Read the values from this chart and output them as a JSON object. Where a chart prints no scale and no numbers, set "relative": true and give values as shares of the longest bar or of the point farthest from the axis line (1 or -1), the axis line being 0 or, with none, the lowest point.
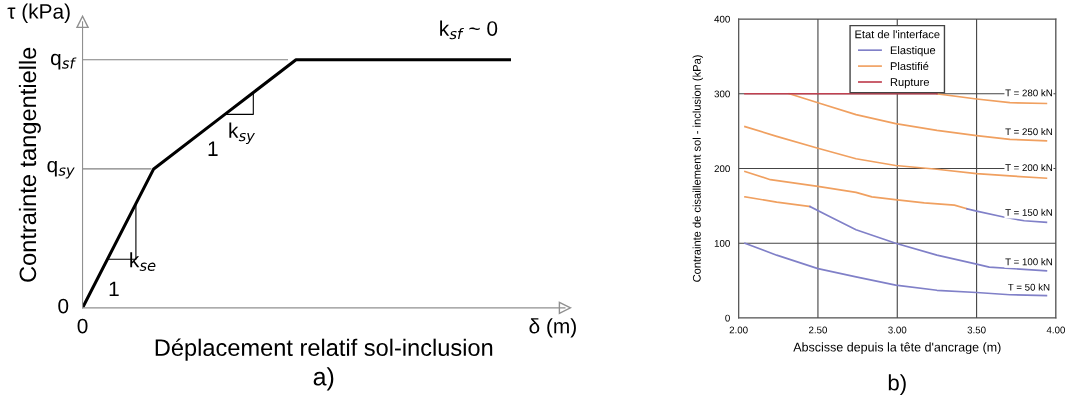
{
  "chart_data": [
    {
      "type": "line",
      "title": "a)",
      "xlabel": "Déplacement relatif sol-inclusion",
      "ylabel": "Contrainte tangentielle",
      "relative": true,
      "categories": [
        null,
        null,
        null,
        null,
        null,
        null,
        null
      ],
      "series": [
        {
          "color": "#000000",
          "values": [
            0,
            0.56,
            0.78,
            1,
            1,
            1,
            1
          ]
        }
      ],
      "ref_lines": [
        {
          "axis": "y",
          "value": 0.56,
          "label": "q$_{sy}$",
          "color": "#808080"
        },
        {
          "axis": "y",
          "value": 1,
          "label": "q$_{sf}$",
          "color": "#808080"
        }
      ],
      "annotations": [
        "τ (kPa)",
        "δ (m)",
        "0",
        "0",
        "k$_{se}$",
        "1",
        "k$_{sy}$",
        "1",
        "k$_{sf}$ ~ 0"
      ],
      "grid": false,
      "legend": false
    },
    {
      "type": "line",
      "title": "b)",
      "xlabel": "Abscisse depuis la tête d'ancrage (m)",
      "ylabel": "Contrainte de cisaillement sol - inclusion (kPa)",
      "legend_title": "Etat de l'interface",
      "xlim": [
        2,
        4
      ],
      "xticks": [
        {
          "value": 2,
          "label": "2.00"
        },
        {
          "value": 2.5,
          "label": "2.50"
        },
        {
          "value": 3,
          "label": "3.00"
        },
        {
          "value": 3.5,
          "label": "3.50"
        },
        {
          "value": 4,
          "label": "4.00"
        }
      ],
      "ylim": [
        0,
        400
      ],
      "yticks": [
        0,
        100,
        200,
        300,
        400
      ],
      "series": [
        {
          "name": "Elastique",
          "color": "#8080c8",
          "x": [
            2.04,
            2.24,
            2.5,
            2.74,
            2.99,
            3.25,
            3.5,
            3.71,
            3.94
          ],
          "values": [
            100,
            84,
            66,
            55,
            44,
            37,
            34,
            31,
            30
          ]
        },
        {
          "name": "Plastifié",
          "color": "#f0a060",
          "x": [
            2.04,
            2.24,
            2.45
          ],
          "values": [
            162,
            155,
            149
          ]
        },
        {
          "color": "#8080c8",
          "x": [
            2.45,
            2.57,
            2.74,
            2.99,
            3.25,
            3.5,
            3.58,
            3.94
          ],
          "values": [
            149,
            136,
            118,
            100,
            84,
            72,
            68,
            63
          ]
        },
        {
          "color": "#f0a060",
          "x": [
            2.04,
            2.2,
            2.5,
            2.74,
            2.84,
            3.0,
            3.17,
            3.36,
            3.44
          ],
          "values": [
            196,
            185,
            176,
            168,
            162,
            158,
            154,
            151,
            146
          ]
        },
        {
          "color": "#8080c8",
          "x": [
            3.44,
            3.5,
            3.67,
            3.8,
            3.94
          ],
          "values": [
            146,
            143,
            135,
            130,
            128
          ]
        },
        {
          "color": "#f0a060",
          "x": [
            2.04,
            2.24,
            2.5,
            2.74,
            2.99,
            3.25,
            3.5,
            3.71,
            3.94
          ],
          "values": [
            256,
            243,
            227,
            213,
            204,
            199,
            193,
            190,
            187
          ]
        },
        {
          "color": "#f0a060",
          "x": [
            2.32,
            2.5,
            2.74,
            2.99,
            3.25,
            3.5,
            3.71,
            3.94
          ],
          "values": [
            300,
            288,
            272,
            260,
            251,
            244,
            239,
            237
          ]
        },
        {
          "color": "#f0a060",
          "x": [
            3.25,
            3.5,
            3.71,
            3.94
          ],
          "values": [
            300,
            293,
            288,
            287
          ]
        },
        {
          "name": "Rupture",
          "color": "#c04050",
          "x": [
            2.04,
            3.25
          ],
          "values": [
            300,
            300
          ]
        }
      ],
      "annotations": [
        "T = 280 kN",
        "T = 250 kN",
        "T = 200 kN",
        "T = 150 kN",
        "T = 100 kN",
        "T = 50 kN"
      ],
      "grid": true,
      "legend": "top"
    }
  ]
}
